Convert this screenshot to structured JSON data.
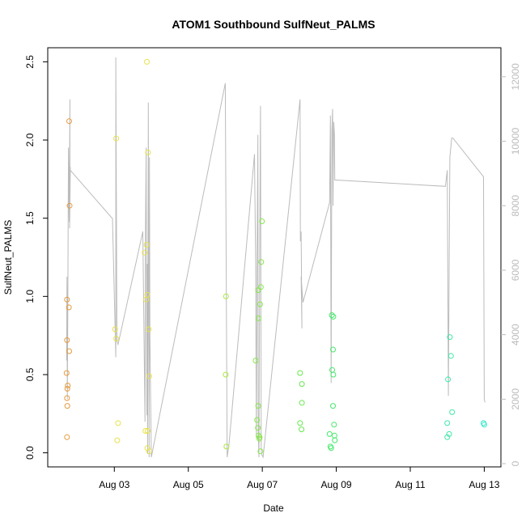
{
  "chart_data": {
    "type": "scatter",
    "title": "ATOM1 Southbound SulfNeut_PALMS",
    "xlabel": "Date",
    "ylabel": "SulfNeut_PALMS",
    "x_ticks": [
      "Aug 03",
      "Aug 05",
      "Aug 07",
      "Aug 09",
      "Aug 11",
      "Aug 13"
    ],
    "x_tick_values": [
      3,
      5,
      7,
      9,
      11,
      13
    ],
    "xlim": [
      1.2,
      13.45
    ],
    "ylim": [
      -0.09,
      2.59
    ],
    "y_ticks": [
      "0.0",
      "0.5",
      "1.0",
      "1.5",
      "2.0",
      "2.5"
    ],
    "y_tick_values": [
      0,
      0.5,
      1.0,
      1.5,
      2.0,
      2.5
    ],
    "y2lim": [
      -100,
      12900
    ],
    "y2_ticks": [
      "0",
      "2000",
      "4000",
      "6000",
      "8000",
      "10000",
      "12000"
    ],
    "y2_tick_values": [
      0,
      2000,
      4000,
      6000,
      8000,
      10000,
      12000
    ],
    "grid": false,
    "points": [
      {
        "x": 1.72,
        "y": 0.1,
        "color": "#e69a3c"
      },
      {
        "x": 1.73,
        "y": 0.3,
        "color": "#e69a3c"
      },
      {
        "x": 1.72,
        "y": 0.35,
        "color": "#e69a3c"
      },
      {
        "x": 1.73,
        "y": 0.41,
        "color": "#e69a3c"
      },
      {
        "x": 1.74,
        "y": 0.43,
        "color": "#e69a3c"
      },
      {
        "x": 1.71,
        "y": 0.51,
        "color": "#e69a3c"
      },
      {
        "x": 1.72,
        "y": 0.72,
        "color": "#e69a3c"
      },
      {
        "x": 1.72,
        "y": 0.98,
        "color": "#e69a3c"
      },
      {
        "x": 1.77,
        "y": 0.93,
        "color": "#e69a3c"
      },
      {
        "x": 1.78,
        "y": 0.65,
        "color": "#e69a3c"
      },
      {
        "x": 1.79,
        "y": 1.58,
        "color": "#e69a3c"
      },
      {
        "x": 1.78,
        "y": 2.12,
        "color": "#e69a3c"
      },
      {
        "x": 3.05,
        "y": 2.01,
        "color": "#e8e24c"
      },
      {
        "x": 3.02,
        "y": 0.79,
        "color": "#e8e24c"
      },
      {
        "x": 3.05,
        "y": 0.73,
        "color": "#e8e24c"
      },
      {
        "x": 3.1,
        "y": 0.19,
        "color": "#e8e24c"
      },
      {
        "x": 3.08,
        "y": 0.08,
        "color": "#e8e24c"
      },
      {
        "x": 3.82,
        "y": 1.28,
        "color": "#e8e24c"
      },
      {
        "x": 3.87,
        "y": 1.33,
        "color": "#e8e24c"
      },
      {
        "x": 3.86,
        "y": 0.98,
        "color": "#e8e24c"
      },
      {
        "x": 3.89,
        "y": 1.01,
        "color": "#e8e24c"
      },
      {
        "x": 3.93,
        "y": 0.79,
        "color": "#e8e24c"
      },
      {
        "x": 3.94,
        "y": 0.49,
        "color": "#e8e24c"
      },
      {
        "x": 3.84,
        "y": 0.14,
        "color": "#e8e24c"
      },
      {
        "x": 3.9,
        "y": 0.14,
        "color": "#e8e24c"
      },
      {
        "x": 3.89,
        "y": 0.03,
        "color": "#e8e24c"
      },
      {
        "x": 3.94,
        "y": 0.01,
        "color": "#e8e24c"
      },
      {
        "x": 3.91,
        "y": 1.92,
        "color": "#e8e24c"
      },
      {
        "x": 3.88,
        "y": 2.5,
        "color": "#e8e24c"
      },
      {
        "x": 6.02,
        "y": 1.0,
        "color": "#a8e840"
      },
      {
        "x": 6.01,
        "y": 0.5,
        "color": "#a8e840"
      },
      {
        "x": 6.03,
        "y": 0.04,
        "color": "#a8e840"
      },
      {
        "x": 6.82,
        "y": 0.59,
        "color": "#86e84a"
      },
      {
        "x": 6.86,
        "y": 0.21,
        "color": "#86e84a"
      },
      {
        "x": 6.88,
        "y": 0.16,
        "color": "#86e84a"
      },
      {
        "x": 6.89,
        "y": 0.3,
        "color": "#86e84a"
      },
      {
        "x": 6.9,
        "y": 0.11,
        "color": "#86e84a"
      },
      {
        "x": 6.92,
        "y": 0.09,
        "color": "#86e84a"
      },
      {
        "x": 6.93,
        "y": 0.1,
        "color": "#86e84a"
      },
      {
        "x": 6.95,
        "y": 0.01,
        "color": "#86e84a"
      },
      {
        "x": 6.9,
        "y": 0.86,
        "color": "#86e84a"
      },
      {
        "x": 6.94,
        "y": 0.95,
        "color": "#86e84a"
      },
      {
        "x": 6.89,
        "y": 1.04,
        "color": "#86e84a"
      },
      {
        "x": 6.96,
        "y": 1.06,
        "color": "#86e84a"
      },
      {
        "x": 6.97,
        "y": 1.22,
        "color": "#86e84a"
      },
      {
        "x": 6.99,
        "y": 1.48,
        "color": "#86e84a"
      },
      {
        "x": 8.02,
        "y": 0.51,
        "color": "#66e84e"
      },
      {
        "x": 8.07,
        "y": 0.44,
        "color": "#66e84e"
      },
      {
        "x": 8.07,
        "y": 0.32,
        "color": "#66e84e"
      },
      {
        "x": 8.02,
        "y": 0.19,
        "color": "#66e84e"
      },
      {
        "x": 8.06,
        "y": 0.15,
        "color": "#66e84e"
      },
      {
        "x": 8.82,
        "y": 0.12,
        "color": "#44e86a"
      },
      {
        "x": 8.84,
        "y": 0.04,
        "color": "#44e86a"
      },
      {
        "x": 8.86,
        "y": 0.03,
        "color": "#44e86a"
      },
      {
        "x": 8.88,
        "y": 0.88,
        "color": "#44e86a"
      },
      {
        "x": 8.92,
        "y": 0.87,
        "color": "#44e86a"
      },
      {
        "x": 8.91,
        "y": 0.66,
        "color": "#44e86a"
      },
      {
        "x": 8.89,
        "y": 0.53,
        "color": "#44e86a"
      },
      {
        "x": 8.92,
        "y": 0.5,
        "color": "#44e86a"
      },
      {
        "x": 8.91,
        "y": 0.3,
        "color": "#44e86a"
      },
      {
        "x": 8.94,
        "y": 0.18,
        "color": "#44e86a"
      },
      {
        "x": 8.95,
        "y": 0.11,
        "color": "#44e86a"
      },
      {
        "x": 8.96,
        "y": 0.08,
        "color": "#44e86a"
      },
      {
        "x": 12.02,
        "y": 0.47,
        "color": "#3ee8a8"
      },
      {
        "x": 12.07,
        "y": 0.74,
        "color": "#3ee8a8"
      },
      {
        "x": 12.1,
        "y": 0.62,
        "color": "#3ee8a8"
      },
      {
        "x": 12.13,
        "y": 0.26,
        "color": "#3ee8a8"
      },
      {
        "x": 12.0,
        "y": 0.19,
        "color": "#3ee8a8"
      },
      {
        "x": 12.05,
        "y": 0.12,
        "color": "#3ee8a8"
      },
      {
        "x": 12.0,
        "y": 0.1,
        "color": "#3ee8a8"
      },
      {
        "x": 12.98,
        "y": 0.19,
        "color": "#2ee8c8"
      },
      {
        "x": 13.0,
        "y": 0.18,
        "color": "#2ee8c8"
      }
    ],
    "line_series": {
      "color": "#bbbbbb",
      "axis": "right",
      "points": [
        [
          1.71,
          3200
        ],
        [
          1.72,
          5800
        ],
        [
          1.73,
          2000
        ],
        [
          1.74,
          4200
        ],
        [
          1.76,
          9800
        ],
        [
          1.78,
          7500
        ],
        [
          1.8,
          11300
        ],
        [
          1.8,
          8800
        ],
        [
          1.81,
          9200
        ],
        [
          1.79,
          7300
        ],
        [
          1.81,
          9100
        ],
        [
          2.95,
          7600
        ],
        [
          3.04,
          3300
        ],
        [
          3.04,
          12600
        ],
        [
          3.07,
          3800
        ],
        [
          3.1,
          3700
        ],
        [
          3.77,
          7200
        ],
        [
          3.83,
          1300
        ],
        [
          3.84,
          7000
        ],
        [
          3.86,
          9800
        ],
        [
          3.88,
          1500
        ],
        [
          3.89,
          6200
        ],
        [
          3.9,
          300
        ],
        [
          3.92,
          11200
        ],
        [
          3.93,
          4500
        ],
        [
          3.94,
          200
        ],
        [
          3.95,
          9500
        ],
        [
          3.96,
          4000
        ],
        [
          4.0,
          200
        ],
        [
          6.0,
          11800
        ],
        [
          6.05,
          200
        ],
        [
          6.1,
          600
        ],
        [
          6.79,
          9600
        ],
        [
          6.82,
          6200
        ],
        [
          6.84,
          800
        ],
        [
          6.86,
          6500
        ],
        [
          6.88,
          10200
        ],
        [
          6.89,
          1000
        ],
        [
          6.91,
          200
        ],
        [
          6.93,
          6500
        ],
        [
          6.95,
          11100
        ],
        [
          6.97,
          500
        ],
        [
          6.98,
          300
        ],
        [
          7.02,
          200
        ],
        [
          8.02,
          11300
        ],
        [
          8.03,
          6900
        ],
        [
          8.05,
          7200
        ],
        [
          8.07,
          4200
        ],
        [
          8.05,
          5800
        ],
        [
          8.1,
          5000
        ],
        [
          8.82,
          8100
        ],
        [
          8.84,
          10800
        ],
        [
          8.86,
          2500
        ],
        [
          8.88,
          10300
        ],
        [
          8.9,
          11000
        ],
        [
          8.91,
          8000
        ],
        [
          8.93,
          10600
        ],
        [
          8.95,
          10200
        ],
        [
          8.96,
          8800
        ],
        [
          11.95,
          8600
        ],
        [
          12.0,
          9100
        ],
        [
          12.03,
          2100
        ],
        [
          12.05,
          6000
        ],
        [
          12.07,
          9500
        ],
        [
          12.12,
          10100
        ],
        [
          12.15,
          10100
        ],
        [
          12.98,
          8900
        ],
        [
          13.0,
          2000
        ],
        [
          13.02,
          1900
        ]
      ]
    }
  }
}
